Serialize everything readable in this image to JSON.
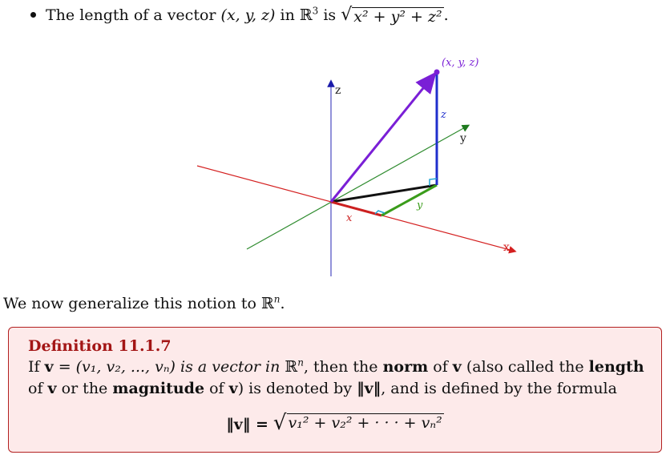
{
  "bullet": {
    "prefix": "The length of a vector",
    "vector": "(x, y, z)",
    "in": "in",
    "space": "ℝ",
    "space_exp": "3",
    "is": "is",
    "radicand": "x² + y² + z²",
    "end": "."
  },
  "diagram": {
    "labels": {
      "axis_x": "x",
      "axis_y": "y",
      "axis_z": "z",
      "point": "(x, y, z)",
      "seg_x": "x",
      "seg_y": "y",
      "seg_z": "z"
    },
    "colors": {
      "x_axis": "#d42020",
      "y_axis": "#2e8b2e",
      "z_axis": "#3b3bb8",
      "vector": "#7a1fd6",
      "z_segment": "#1f2fcc",
      "y_segment": "#3a9c1a",
      "x_segment": "#cc2020",
      "projection": "#111111",
      "right_angle": "#22a6d6"
    }
  },
  "intro": {
    "text": "We now generalize this notion to",
    "space": "ℝ",
    "space_exp": "n",
    "end": "."
  },
  "definition": {
    "title": "Definition 11.1.7",
    "if": "If",
    "v_sym": "v",
    "eq_vector": "= (v₁, v₂, ..., vₙ) is a vector in",
    "space": "ℝ",
    "space_exp": "n",
    "then_the": ", then the",
    "norm_word": "norm",
    "of": "of",
    "also_called": "(also called the",
    "length_word": "length",
    "of_v_or_the": "of",
    "or_the": "or the",
    "magnitude_word": "magnitude",
    "of_v_close": "of",
    "close_paren": ")",
    "denoted_by": "is denoted by",
    "norm_symbol": "‖v‖",
    "defined_by": ", and is defined by the formula",
    "formula_lhs": "‖v‖ =",
    "formula_radicand": "v₁² + v₂² + · · · + vₙ²"
  },
  "theme": {
    "box_background": "#fdeaea",
    "box_border": "#b32020",
    "title_color": "#a31515"
  }
}
